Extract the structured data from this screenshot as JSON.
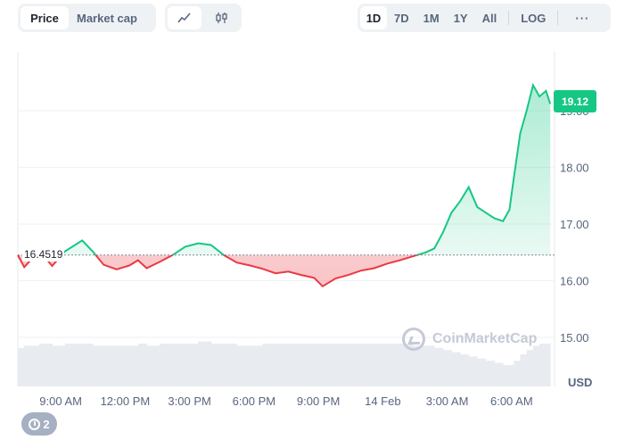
{
  "toolbar": {
    "type_tabs": [
      {
        "label": "Price",
        "active": true
      },
      {
        "label": "Market cap",
        "active": false
      }
    ],
    "chart_modes": [
      {
        "icon": "line-chart-icon",
        "active": true
      },
      {
        "icon": "candlestick-icon",
        "active": false
      }
    ],
    "ranges": [
      {
        "label": "1D",
        "active": true
      },
      {
        "label": "7D",
        "active": false
      },
      {
        "label": "1M",
        "active": false
      },
      {
        "label": "1Y",
        "active": false
      },
      {
        "label": "All",
        "active": false
      }
    ],
    "log_label": "LOG",
    "more_label": "···"
  },
  "current_price_label": "19.12",
  "open_price_label": "16.4519",
  "currency_label": "USD",
  "watermark_text": "CoinMarketCap",
  "history_count": "2",
  "colors": {
    "up": "#16c784",
    "down": "#ea3943",
    "grid": "#eff2f5",
    "volume": "#e8ebf0",
    "label": "#58667e"
  },
  "chart_data": {
    "type": "area",
    "title": "",
    "xlabel": "",
    "ylabel": "USD",
    "baseline": 16.4519,
    "ylim": [
      15.0,
      20.0
    ],
    "yticks": [
      "15.00",
      "16.00",
      "17.00",
      "18.00",
      "19.00"
    ],
    "xticks": [
      "9:00 AM",
      "12:00 PM",
      "3:00 PM",
      "6:00 PM",
      "9:00 PM",
      "14 Feb",
      "3:00 AM",
      "6:00 AM"
    ],
    "xtick_hours": [
      2,
      5,
      8,
      11,
      14,
      17,
      20,
      23
    ],
    "x_hours": [
      0,
      0.3,
      1.0,
      1.6,
      2.2,
      3.0,
      3.5,
      4.0,
      4.6,
      5.2,
      5.6,
      6.0,
      6.6,
      7.2,
      7.8,
      8.4,
      9.0,
      9.6,
      10.2,
      10.8,
      11.4,
      12.0,
      12.6,
      13.2,
      13.8,
      14.2,
      14.8,
      15.4,
      16.0,
      16.6,
      17.2,
      17.8,
      18.4,
      19.0,
      19.4,
      19.8,
      20.2,
      20.6,
      21.0,
      21.4,
      21.8,
      22.2,
      22.6,
      22.9,
      23.1,
      23.4,
      23.7,
      24.0,
      24.3,
      24.6,
      24.8
    ],
    "values": [
      16.45,
      16.24,
      16.53,
      16.26,
      16.52,
      16.71,
      16.51,
      16.28,
      16.2,
      16.27,
      16.36,
      16.22,
      16.33,
      16.45,
      16.6,
      16.66,
      16.63,
      16.45,
      16.32,
      16.27,
      16.21,
      16.13,
      16.16,
      16.1,
      16.05,
      15.9,
      16.04,
      16.1,
      16.18,
      16.22,
      16.3,
      16.36,
      16.43,
      16.5,
      16.57,
      16.85,
      17.2,
      17.4,
      17.65,
      17.3,
      17.2,
      17.1,
      17.05,
      17.25,
      17.8,
      18.6,
      19.0,
      19.45,
      19.25,
      19.35,
      19.12
    ],
    "volume": [
      0.18,
      0.19,
      0.2,
      0.19,
      0.2,
      0.2,
      0.19,
      0.19,
      0.19,
      0.19,
      0.2,
      0.19,
      0.2,
      0.2,
      0.2,
      0.21,
      0.2,
      0.2,
      0.19,
      0.19,
      0.2,
      0.2,
      0.2,
      0.2,
      0.2,
      0.2,
      0.2,
      0.2,
      0.2,
      0.2,
      0.2,
      0.2,
      0.19,
      0.19,
      0.18,
      0.17,
      0.16,
      0.15,
      0.14,
      0.13,
      0.12,
      0.11,
      0.1,
      0.1,
      0.12,
      0.15,
      0.17,
      0.19,
      0.2,
      0.2,
      0.21
    ]
  }
}
